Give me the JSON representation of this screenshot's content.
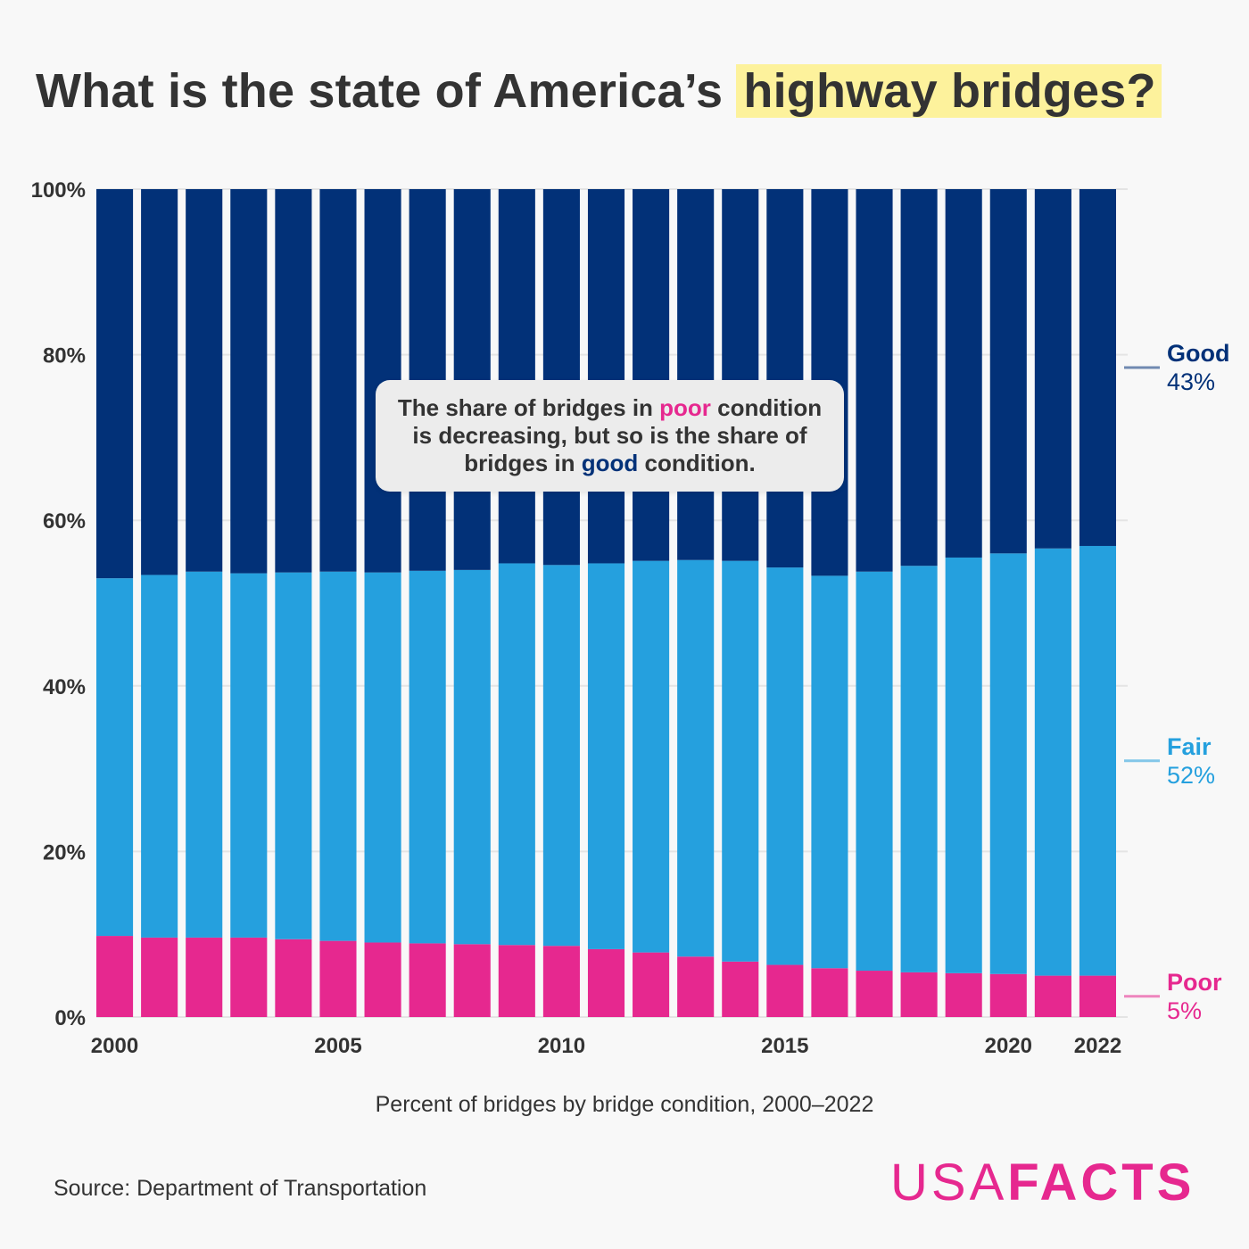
{
  "title": {
    "prefix": "What is the state of America’s",
    "highlight": "highway bridges?"
  },
  "callout": {
    "part1": "The share of bridges in ",
    "poor_word": "poor",
    "part2": " condition is decreasing, but so is the share of bridges in ",
    "good_word": "good",
    "part3": " condition."
  },
  "subtitle": "Percent of bridges by bridge condition, 2000–2022",
  "source": "Source: Department of Transportation",
  "logo": {
    "part1": "USA",
    "part2": "FACTS"
  },
  "colors": {
    "poor": "#e6288f",
    "fair": "#25a0de",
    "good": "#023178",
    "grid": "#e4e4e4",
    "highlight": "#fdf29c"
  },
  "chart_data": {
    "type": "bar",
    "stacked": true,
    "categories": [
      "2000",
      "2001",
      "2002",
      "2003",
      "2004",
      "2005",
      "2006",
      "2007",
      "2008",
      "2009",
      "2010",
      "2011",
      "2012",
      "2013",
      "2014",
      "2015",
      "2016",
      "2017",
      "2018",
      "2019",
      "2020",
      "2021",
      "2022"
    ],
    "x_tick_labels": [
      "2000",
      "2005",
      "2010",
      "2015",
      "2020",
      "2022"
    ],
    "y_tick_labels": [
      "0%",
      "20%",
      "40%",
      "60%",
      "80%",
      "100%"
    ],
    "ylim": [
      0,
      100
    ],
    "grid": true,
    "series": [
      {
        "name": "Poor",
        "end_label": "5%",
        "color": "#e6288f",
        "values": [
          9.8,
          9.6,
          9.6,
          9.6,
          9.4,
          9.2,
          9.0,
          8.9,
          8.8,
          8.7,
          8.6,
          8.2,
          7.8,
          7.3,
          6.7,
          6.3,
          5.9,
          5.6,
          5.4,
          5.3,
          5.2,
          5.0,
          5.0
        ]
      },
      {
        "name": "Fair",
        "end_label": "52%",
        "color": "#25a0de",
        "values": [
          43.2,
          43.8,
          44.2,
          44.0,
          44.3,
          44.6,
          44.7,
          45.0,
          45.2,
          46.1,
          46.0,
          46.6,
          47.3,
          47.9,
          48.4,
          48.0,
          47.4,
          48.2,
          49.1,
          50.2,
          50.8,
          51.6,
          51.9
        ]
      },
      {
        "name": "Good",
        "end_label": "43%",
        "color": "#023178",
        "values": [
          47.0,
          46.6,
          46.2,
          46.4,
          46.3,
          46.2,
          46.3,
          46.1,
          46.0,
          45.2,
          45.4,
          45.2,
          44.9,
          44.8,
          44.9,
          45.7,
          46.7,
          46.2,
          45.5,
          44.5,
          44.0,
          43.4,
          43.1
        ]
      }
    ]
  }
}
